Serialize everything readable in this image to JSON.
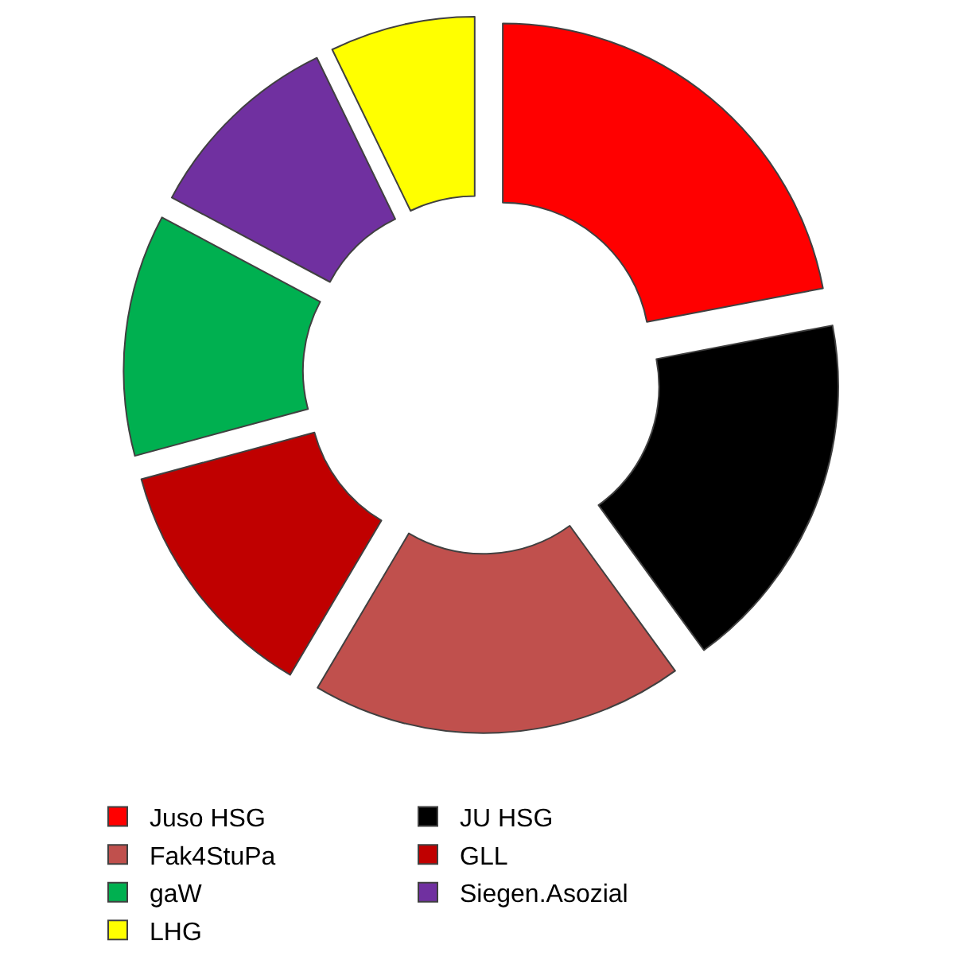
{
  "chart_data": {
    "type": "donut",
    "categories": [
      "Juso HSG",
      "JU HSG",
      "Fak4StuPa",
      "GLL",
      "gaW",
      "Siegen.Asozial",
      "LHG"
    ],
    "values": [
      22,
      18,
      18.5,
      12.3,
      12,
      10,
      7.2
    ],
    "colors": [
      "#ff0000",
      "#000000",
      "#c0504d",
      "#c00000",
      "#00b050",
      "#7030a0",
      "#ffff00"
    ],
    "legend": "bottom"
  }
}
